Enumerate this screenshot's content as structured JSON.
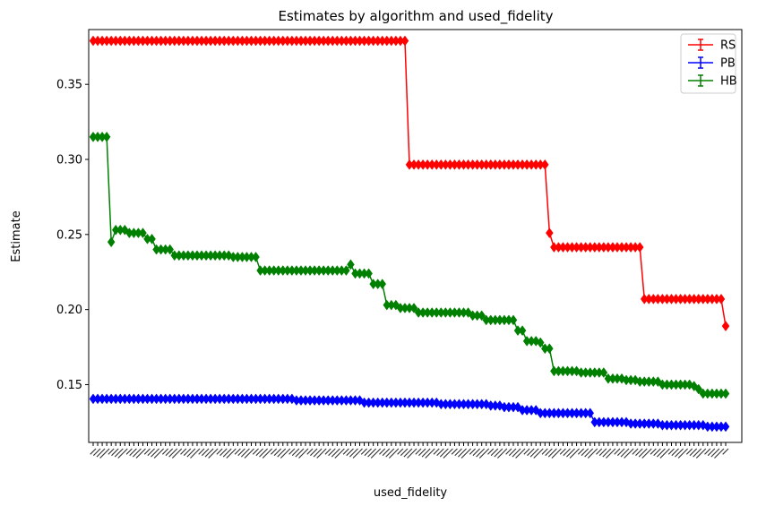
{
  "chart_data": {
    "type": "line",
    "title": "Estimates by algorithm and used_fidelity",
    "xlabel": "used_fidelity",
    "ylabel": "Estimate",
    "ylim": [
      0.1115,
      0.3865
    ],
    "yticks": [
      "0.15",
      "0.20",
      "0.25",
      "0.30",
      "0.35"
    ],
    "ytick_values": [
      0.15,
      0.2,
      0.25,
      0.3,
      0.35
    ],
    "x_count": 141,
    "x_tick_labels_note": "141 rotated category tick labels, illegible (overlapping)",
    "grid": false,
    "legend_position": "top-right",
    "marker": "diamond",
    "series": [
      {
        "name": "RS",
        "color": "#ff0000",
        "segments": [
          {
            "from": 0,
            "to": 69,
            "value": 0.379
          },
          {
            "from": 70,
            "to": 100,
            "value": 0.2965
          },
          {
            "from": 101,
            "to": 101,
            "value": 0.251
          },
          {
            "from": 102,
            "to": 121,
            "value": 0.2415
          },
          {
            "from": 122,
            "to": 139,
            "value": 0.207
          },
          {
            "from": 140,
            "to": 140,
            "value": 0.189
          }
        ]
      },
      {
        "name": "PB",
        "color": "#0000ff",
        "segments": [
          {
            "from": 0,
            "to": 44,
            "value": 0.1405
          },
          {
            "from": 45,
            "to": 59,
            "value": 0.1395
          },
          {
            "from": 60,
            "to": 76,
            "value": 0.138
          },
          {
            "from": 77,
            "to": 87,
            "value": 0.137
          },
          {
            "from": 88,
            "to": 90,
            "value": 0.136
          },
          {
            "from": 91,
            "to": 94,
            "value": 0.135
          },
          {
            "from": 95,
            "to": 98,
            "value": 0.133
          },
          {
            "from": 99,
            "to": 110,
            "value": 0.131
          },
          {
            "from": 111,
            "to": 118,
            "value": 0.125
          },
          {
            "from": 119,
            "to": 125,
            "value": 0.124
          },
          {
            "from": 126,
            "to": 135,
            "value": 0.123
          },
          {
            "from": 136,
            "to": 140,
            "value": 0.122
          }
        ]
      },
      {
        "name": "HB",
        "color": "#008000",
        "segments": [
          {
            "from": 0,
            "to": 3,
            "value": 0.315
          },
          {
            "from": 4,
            "to": 4,
            "value": 0.245
          },
          {
            "from": 5,
            "to": 7,
            "value": 0.253
          },
          {
            "from": 8,
            "to": 11,
            "value": 0.251
          },
          {
            "from": 12,
            "to": 13,
            "value": 0.247
          },
          {
            "from": 14,
            "to": 17,
            "value": 0.24
          },
          {
            "from": 18,
            "to": 30,
            "value": 0.236
          },
          {
            "from": 31,
            "to": 36,
            "value": 0.235
          },
          {
            "from": 37,
            "to": 56,
            "value": 0.226
          },
          {
            "from": 57,
            "to": 57,
            "value": 0.23
          },
          {
            "from": 58,
            "to": 61,
            "value": 0.224
          },
          {
            "from": 62,
            "to": 64,
            "value": 0.217
          },
          {
            "from": 65,
            "to": 67,
            "value": 0.203
          },
          {
            "from": 68,
            "to": 71,
            "value": 0.201
          },
          {
            "from": 72,
            "to": 83,
            "value": 0.198
          },
          {
            "from": 84,
            "to": 86,
            "value": 0.196
          },
          {
            "from": 87,
            "to": 93,
            "value": 0.193
          },
          {
            "from": 94,
            "to": 95,
            "value": 0.186
          },
          {
            "from": 96,
            "to": 98,
            "value": 0.179
          },
          {
            "from": 99,
            "to": 99,
            "value": 0.178
          },
          {
            "from": 100,
            "to": 101,
            "value": 0.174
          },
          {
            "from": 102,
            "to": 107,
            "value": 0.159
          },
          {
            "from": 108,
            "to": 113,
            "value": 0.158
          },
          {
            "from": 114,
            "to": 117,
            "value": 0.154
          },
          {
            "from": 118,
            "to": 120,
            "value": 0.153
          },
          {
            "from": 121,
            "to": 125,
            "value": 0.152
          },
          {
            "from": 126,
            "to": 132,
            "value": 0.15
          },
          {
            "from": 133,
            "to": 133,
            "value": 0.149
          },
          {
            "from": 134,
            "to": 134,
            "value": 0.147
          },
          {
            "from": 135,
            "to": 140,
            "value": 0.144
          }
        ]
      }
    ]
  }
}
